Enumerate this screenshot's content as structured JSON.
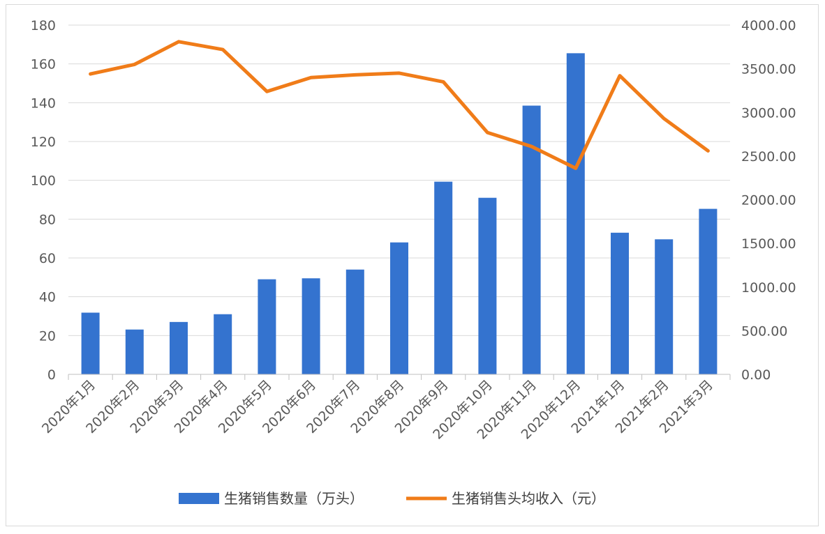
{
  "chart_data": {
    "type": "bar+line",
    "categories": [
      "2020年1月",
      "2020年2月",
      "2020年3月",
      "2020年4月",
      "2020年5月",
      "2020年6月",
      "2020年7月",
      "2020年8月",
      "2020年9月",
      "2020年10月",
      "2020年11月",
      "2020年12月",
      "2021年1月",
      "2021年2月",
      "2021年3月"
    ],
    "series": [
      {
        "name": "生猪销售数量（万头）",
        "type": "bar",
        "axis": "left",
        "color": "#3473cf",
        "values": [
          31.8,
          23.1,
          27.0,
          31.0,
          49.0,
          49.5,
          54.0,
          68.0,
          99.3,
          91.0,
          138.5,
          165.5,
          73.0,
          69.6,
          85.3
        ]
      },
      {
        "name": "生猪销售头均收入（元）",
        "type": "line",
        "axis": "right",
        "color": "#f07c19",
        "values": [
          3440,
          3550,
          3810,
          3720,
          3240,
          3400,
          3430,
          3450,
          3350,
          2770,
          2610,
          2360,
          3420,
          2930,
          2560
        ]
      }
    ],
    "left_axis": {
      "min": 0,
      "max": 180,
      "step": 20,
      "ticks": [
        "0",
        "20",
        "40",
        "60",
        "80",
        "100",
        "120",
        "140",
        "160",
        "180"
      ]
    },
    "right_axis": {
      "min": 0,
      "max": 4000,
      "step": 500,
      "ticks": [
        "0.00",
        "500.00",
        "1000.00",
        "1500.00",
        "2000.00",
        "2500.00",
        "3000.00",
        "3500.00",
        "4000.00"
      ]
    },
    "grid": true,
    "legend_position": "bottom"
  }
}
